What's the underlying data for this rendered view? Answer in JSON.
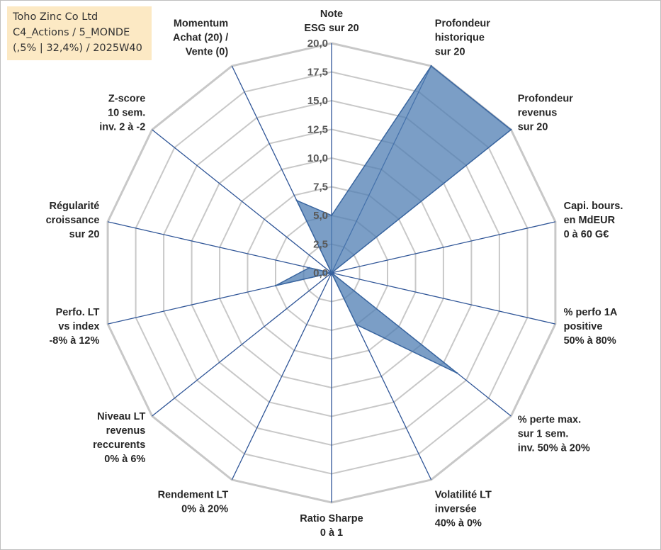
{
  "info": {
    "line1": "Toho Zinc Co Ltd",
    "line2": "C4_Actions / 5_MONDE",
    "line3": "(,5% | 32,4%) / 2025W40"
  },
  "colors": {
    "fill": "#4f7db3",
    "stroke": "#3a66a0",
    "grid": "#c8c8c8",
    "axis": "#2f5597",
    "info_bg": "#fce9c4"
  },
  "chart_data": {
    "type": "radar",
    "rmin": 0,
    "rmax": 20,
    "ticks": [
      "0,0",
      "2,5",
      "5,0",
      "7,5",
      "10,0",
      "12,5",
      "15,0",
      "17,5",
      "20,0"
    ],
    "categories": [
      [
        "Note",
        "ESG sur 20"
      ],
      [
        "Profondeur",
        "historique",
        "sur 20"
      ],
      [
        "Profondeur",
        "revenus",
        "sur 20"
      ],
      [
        "Capi. bours.",
        "en MdEUR",
        "0 à 60 G€"
      ],
      [
        "% perfo 1A",
        "positive",
        "50% à 80%"
      ],
      [
        "% perte max.",
        "sur 1 sem.",
        "inv. 50% à 20%"
      ],
      [
        "Volatilité LT",
        "inversée",
        "40% à 0%"
      ],
      [
        "Ratio Sharpe",
        "0 à 1"
      ],
      [
        "Rendement LT",
        "0% à 20%"
      ],
      [
        "Niveau LT",
        "revenus",
        "reccurents",
        "0% à 6%"
      ],
      [
        "Perfo. LT",
        "vs index",
        "-8% à 12%"
      ],
      [
        "Régularité",
        "croissance",
        "sur 20"
      ],
      [
        "Z-score",
        "10 sem.",
        "inv. 2 à -2"
      ],
      [
        "Momentum",
        "Achat (20) /",
        "Vente (0)"
      ]
    ],
    "series": [
      {
        "name": "Toho Zinc Co Ltd",
        "values": [
          5,
          20,
          20,
          0,
          0,
          14,
          5,
          0,
          0,
          0,
          5,
          2,
          0,
          7
        ]
      }
    ]
  }
}
